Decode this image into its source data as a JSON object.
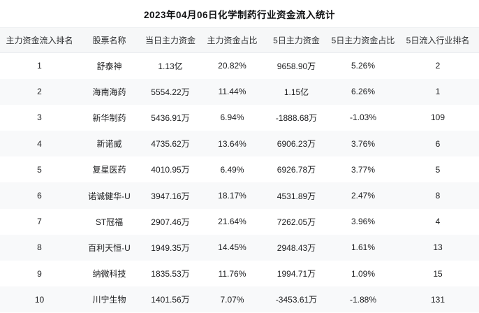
{
  "page": {
    "title": "2023年04月06日化学制药行业资金流入统计"
  },
  "colors": {
    "header_row_bg": "#f6f7f8",
    "even_row_bg": "#f8f9fa",
    "odd_row_bg": "#ffffff",
    "text": "#1c1d1f"
  },
  "table": {
    "columns": [
      "主力资金流入排名",
      "股票名称",
      "当日主力资金",
      "主力资金占比",
      "5日主力资金",
      "5日主力资金占比",
      "5日流入行业排名"
    ],
    "rows": [
      [
        "1",
        "舒泰神",
        "1.13亿",
        "20.82%",
        "9658.90万",
        "5.26%",
        "2"
      ],
      [
        "2",
        "海南海药",
        "5554.22万",
        "11.44%",
        "1.15亿",
        "6.26%",
        "1"
      ],
      [
        "3",
        "新华制药",
        "5436.91万",
        "6.94%",
        "-1888.68万",
        "-1.03%",
        "109"
      ],
      [
        "4",
        "新诺威",
        "4735.62万",
        "13.64%",
        "6906.23万",
        "3.76%",
        "6"
      ],
      [
        "5",
        "复星医药",
        "4010.95万",
        "6.49%",
        "6926.78万",
        "3.77%",
        "5"
      ],
      [
        "6",
        "诺诚健华-U",
        "3947.16万",
        "18.17%",
        "4531.89万",
        "2.47%",
        "8"
      ],
      [
        "7",
        "ST冠福",
        "2907.46万",
        "21.64%",
        "7262.05万",
        "3.96%",
        "4"
      ],
      [
        "8",
        "百利天恒-U",
        "1949.35万",
        "14.45%",
        "2948.43万",
        "1.61%",
        "13"
      ],
      [
        "9",
        "纳微科技",
        "1835.53万",
        "11.76%",
        "1994.71万",
        "1.09%",
        "15"
      ],
      [
        "10",
        "川宁生物",
        "1401.56万",
        "7.07%",
        "-3453.61万",
        "-1.88%",
        "131"
      ]
    ]
  },
  "chart_data": {
    "type": "table",
    "title": "2023年04月06日化学制药行业资金流入统计",
    "columns": [
      "主力资金流入排名",
      "股票名称",
      "当日主力资金",
      "主力资金占比",
      "5日主力资金",
      "5日主力资金占比",
      "5日流入行业排名"
    ],
    "rows": [
      {
        "rank": 1,
        "stock": "舒泰神",
        "main_fund_today": "1.13亿",
        "main_fund_pct": "20.82%",
        "main_fund_5d": "9658.90万",
        "main_fund_5d_pct": "5.26%",
        "industry_rank_5d": 2
      },
      {
        "rank": 2,
        "stock": "海南海药",
        "main_fund_today": "5554.22万",
        "main_fund_pct": "11.44%",
        "main_fund_5d": "1.15亿",
        "main_fund_5d_pct": "6.26%",
        "industry_rank_5d": 1
      },
      {
        "rank": 3,
        "stock": "新华制药",
        "main_fund_today": "5436.91万",
        "main_fund_pct": "6.94%",
        "main_fund_5d": "-1888.68万",
        "main_fund_5d_pct": "-1.03%",
        "industry_rank_5d": 109
      },
      {
        "rank": 4,
        "stock": "新诺威",
        "main_fund_today": "4735.62万",
        "main_fund_pct": "13.64%",
        "main_fund_5d": "6906.23万",
        "main_fund_5d_pct": "3.76%",
        "industry_rank_5d": 6
      },
      {
        "rank": 5,
        "stock": "复星医药",
        "main_fund_today": "4010.95万",
        "main_fund_pct": "6.49%",
        "main_fund_5d": "6926.78万",
        "main_fund_5d_pct": "3.77%",
        "industry_rank_5d": 5
      },
      {
        "rank": 6,
        "stock": "诺诚健华-U",
        "main_fund_today": "3947.16万",
        "main_fund_pct": "18.17%",
        "main_fund_5d": "4531.89万",
        "main_fund_5d_pct": "2.47%",
        "industry_rank_5d": 8
      },
      {
        "rank": 7,
        "stock": "ST冠福",
        "main_fund_today": "2907.46万",
        "main_fund_pct": "21.64%",
        "main_fund_5d": "7262.05万",
        "main_fund_5d_pct": "3.96%",
        "industry_rank_5d": 4
      },
      {
        "rank": 8,
        "stock": "百利天恒-U",
        "main_fund_today": "1949.35万",
        "main_fund_pct": "14.45%",
        "main_fund_5d": "2948.43万",
        "main_fund_5d_pct": "1.61%",
        "industry_rank_5d": 13
      },
      {
        "rank": 9,
        "stock": "纳微科技",
        "main_fund_today": "1835.53万",
        "main_fund_pct": "11.76%",
        "main_fund_5d": "1994.71万",
        "main_fund_5d_pct": "1.09%",
        "industry_rank_5d": 15
      },
      {
        "rank": 10,
        "stock": "川宁生物",
        "main_fund_today": "1401.56万",
        "main_fund_pct": "7.07%",
        "main_fund_5d": "-3453.61万",
        "main_fund_5d_pct": "-1.88%",
        "industry_rank_5d": 131
      }
    ]
  }
}
